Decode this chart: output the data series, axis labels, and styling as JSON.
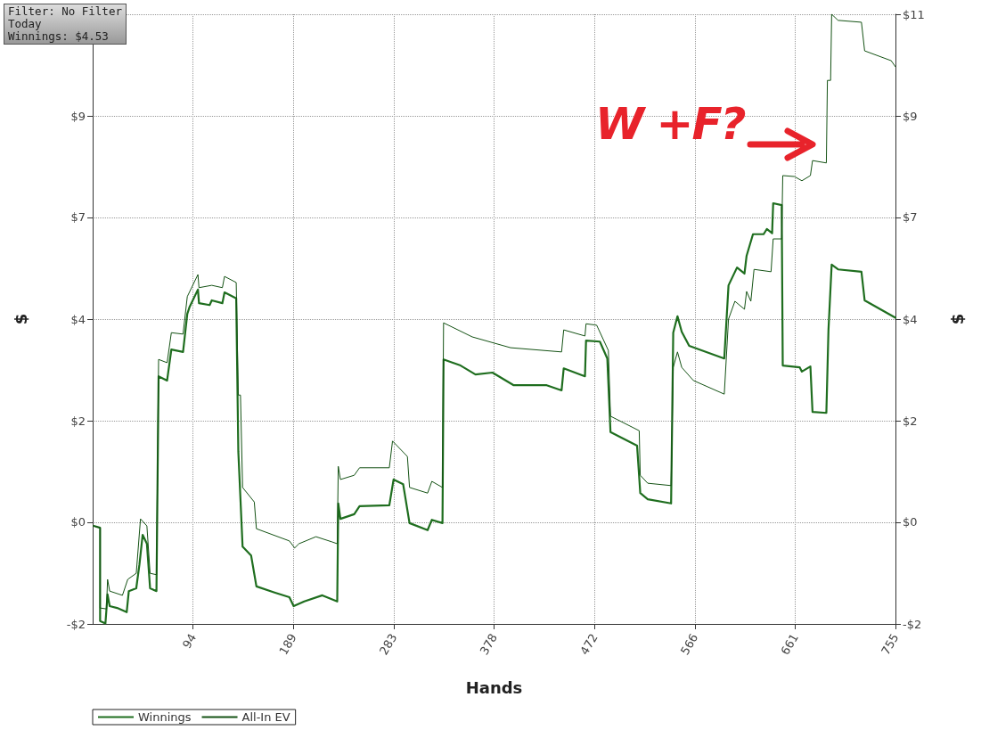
{
  "chart_data": {
    "type": "line",
    "xlabel": "Hands",
    "ylabel": "$",
    "y2label": "$",
    "xlim": [
      0,
      755
    ],
    "xticks": [
      {
        "value": 94.375,
        "label": "94"
      },
      {
        "value": 188.75,
        "label": "189"
      },
      {
        "value": 283.125,
        "label": "283"
      },
      {
        "value": 377.5,
        "label": "378"
      },
      {
        "value": 471.875,
        "label": "472"
      },
      {
        "value": 566.25,
        "label": "566"
      },
      {
        "value": 660.625,
        "label": "661"
      },
      {
        "value": 755,
        "label": "755"
      }
    ],
    "ylim": [
      -2,
      11
    ],
    "yticks": [
      {
        "value": -2,
        "label": "-$2"
      },
      {
        "value": 0.1667,
        "label": "$0"
      },
      {
        "value": 2.333,
        "label": "$2"
      },
      {
        "value": 4.5,
        "label": "$4"
      },
      {
        "value": 6.667,
        "label": "$7"
      },
      {
        "value": 8.833,
        "label": "$9"
      },
      {
        "value": 11,
        "label": null
      }
    ],
    "y2lim": [
      -2,
      11
    ],
    "y2ticks": [
      {
        "value": -2,
        "label": "-$2"
      },
      {
        "value": 0.1667,
        "label": "$0"
      },
      {
        "value": 2.333,
        "label": "$2"
      },
      {
        "value": 4.5,
        "label": "$4"
      },
      {
        "value": 6.667,
        "label": "$7"
      },
      {
        "value": 8.833,
        "label": "$9"
      },
      {
        "value": 11,
        "label": "$11"
      }
    ],
    "grid": true,
    "legend": "bottom left",
    "marker": "none",
    "line_style": "solid",
    "annotations": [
      "Filter: No Filter",
      "Today",
      "Winnings: $4.53",
      "W +F?"
    ],
    "series": [
      {
        "name": "Winnings",
        "color": "#1f6e1f",
        "x": [
          1,
          7,
          7,
          12,
          14,
          16,
          23,
          32,
          34,
          41,
          44,
          47,
          51,
          54,
          60,
          62,
          70,
          74,
          85,
          89,
          91,
          99,
          100,
          110,
          112,
          122,
          124,
          135,
          137,
          141,
          149,
          154,
          171,
          185,
          189,
          199,
          216,
          230,
          231,
          233,
          246,
          251,
          279,
          283,
          292,
          298,
          315,
          319,
          329,
          330,
          346,
          360,
          376,
          396,
          427,
          441,
          443,
          463,
          464,
          477,
          484,
          487,
          512,
          515,
          522,
          544,
          546,
          550,
          554,
          561,
          594,
          598,
          606,
          613,
          615,
          621,
          631,
          634,
          639,
          640,
          648,
          649,
          665,
          667,
          675,
          677,
          690,
          692,
          695,
          701,
          723,
          726,
          755
        ],
        "values": [
          0.09,
          0.05,
          -1.94,
          -1.99,
          -1.37,
          -1.62,
          -1.66,
          -1.75,
          -1.3,
          -1.24,
          -0.73,
          -0.1,
          -0.29,
          -1.24,
          -1.3,
          3.28,
          3.19,
          3.85,
          3.8,
          4.61,
          4.75,
          5.13,
          4.84,
          4.8,
          4.9,
          4.84,
          5.07,
          4.94,
          1.67,
          -0.35,
          -0.54,
          -1.2,
          -1.33,
          -1.43,
          -1.62,
          -1.52,
          -1.39,
          -1.52,
          0.57,
          0.24,
          0.34,
          0.51,
          0.53,
          1.08,
          0.98,
          0.15,
          0.0,
          0.22,
          0.15,
          3.64,
          3.51,
          3.32,
          3.36,
          3.09,
          3.09,
          2.98,
          3.45,
          3.28,
          4.04,
          4.02,
          3.66,
          2.09,
          1.8,
          0.79,
          0.66,
          0.57,
          4.21,
          4.56,
          4.23,
          3.93,
          3.66,
          5.22,
          5.6,
          5.47,
          5.85,
          6.31,
          6.31,
          6.42,
          6.33,
          6.97,
          6.93,
          3.51,
          3.47,
          3.38,
          3.49,
          2.52,
          2.5,
          4.27,
          5.66,
          5.56,
          5.51,
          4.9,
          4.53
        ]
      },
      {
        "name": "All-In EV",
        "color": "#145214",
        "x": [
          1,
          7,
          7,
          13,
          14,
          16,
          28,
          33,
          41,
          45,
          51,
          54,
          60,
          62,
          70,
          74,
          85,
          89,
          99,
          100,
          112,
          122,
          124,
          135,
          137,
          139,
          141,
          152,
          154,
          185,
          190,
          194,
          210,
          225,
          230,
          231,
          233,
          246,
          251,
          279,
          282,
          296,
          298,
          315,
          319,
          329,
          330,
          357,
          393,
          441,
          443,
          463,
          464,
          474,
          485,
          487,
          514,
          515,
          522,
          544,
          546,
          550,
          554,
          565,
          594,
          598,
          604,
          613,
          615,
          619,
          622,
          638,
          640,
          648,
          649,
          660,
          667,
          675,
          677,
          690,
          691,
          694,
          695,
          701,
          723,
          726,
          751,
          755
        ],
        "values": [
          0.09,
          0.05,
          -1.66,
          -1.68,
          -1.05,
          -1.3,
          -1.39,
          -1.05,
          -0.92,
          0.24,
          0.09,
          -0.92,
          -0.95,
          3.64,
          3.57,
          4.21,
          4.18,
          4.98,
          5.45,
          5.17,
          5.22,
          5.17,
          5.41,
          5.28,
          2.88,
          2.88,
          0.91,
          0.6,
          0.03,
          -0.23,
          -0.38,
          -0.29,
          -0.14,
          -0.25,
          -0.29,
          1.36,
          1.08,
          1.17,
          1.33,
          1.33,
          1.9,
          1.57,
          0.91,
          0.79,
          1.04,
          0.91,
          4.42,
          4.12,
          3.89,
          3.8,
          4.27,
          4.14,
          4.4,
          4.37,
          3.83,
          2.43,
          2.12,
          1.17,
          1.0,
          0.95,
          3.47,
          3.8,
          3.47,
          3.19,
          2.9,
          4.5,
          4.88,
          4.71,
          5.09,
          4.88,
          5.56,
          5.51,
          6.21,
          6.21,
          7.56,
          7.54,
          7.45,
          7.56,
          7.88,
          7.83,
          9.59,
          9.59,
          11.0,
          10.87,
          10.83,
          10.22,
          10.01,
          9.88
        ]
      }
    ]
  }
}
